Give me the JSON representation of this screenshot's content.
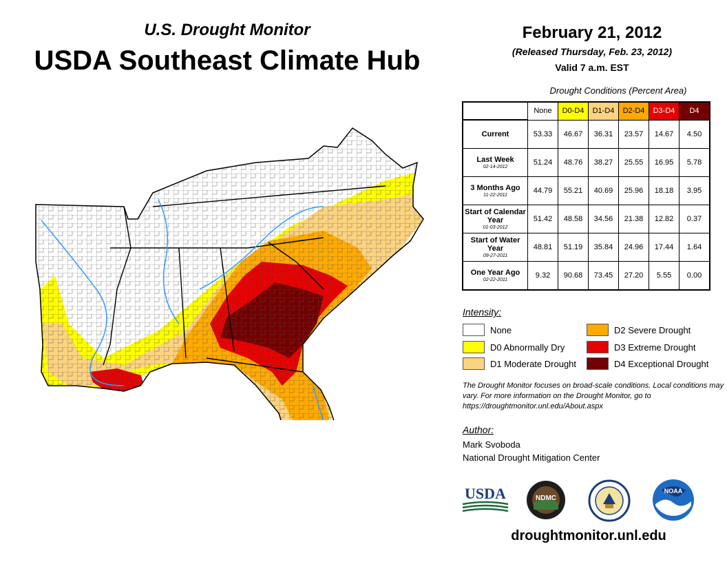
{
  "header": {
    "subtitle": "U.S. Drought Monitor",
    "title": "USDA Southeast Climate Hub",
    "date": "February 21, 2012",
    "released": "(Released Thursday, Feb. 23, 2012)",
    "valid": "Valid 7 a.m. EST"
  },
  "table": {
    "caption": "Drought Conditions (Percent Area)",
    "columns": [
      "None",
      "D0-D4",
      "D1-D4",
      "D2-D4",
      "D3-D4",
      "D4"
    ],
    "column_colors": [
      "#ffffff",
      "#ffff00",
      "#fcd37f",
      "#ffaa00",
      "#e60000",
      "#730000"
    ],
    "rows": [
      {
        "label": "Current",
        "date": "",
        "values": [
          "53.33",
          "46.67",
          "36.31",
          "23.57",
          "14.67",
          "4.50"
        ]
      },
      {
        "label": "Last Week",
        "date": "02-14-2012",
        "values": [
          "51.24",
          "48.76",
          "38.27",
          "25.55",
          "16.95",
          "5.78"
        ]
      },
      {
        "label": "3 Months Ago",
        "date": "11-22-2011",
        "values": [
          "44.79",
          "55.21",
          "40.69",
          "25.96",
          "18.18",
          "3.95"
        ]
      },
      {
        "label": "Start of Calendar Year",
        "date": "01-03-2012",
        "values": [
          "51.42",
          "48.58",
          "34.56",
          "21.38",
          "12.82",
          "0.37"
        ]
      },
      {
        "label": "Start of Water Year",
        "date": "09-27-2011",
        "values": [
          "48.81",
          "51.19",
          "35.84",
          "24.96",
          "17.44",
          "1.64"
        ]
      },
      {
        "label": "One Year Ago",
        "date": "02-22-2011",
        "values": [
          "9.32",
          "90.68",
          "73.45",
          "27.20",
          "5.55",
          "0.00"
        ]
      }
    ]
  },
  "legend": {
    "title": "Intensity:",
    "items": [
      {
        "label": "None",
        "color": "#ffffff"
      },
      {
        "label": "D0 Abnormally Dry",
        "color": "#ffff00"
      },
      {
        "label": "D1 Moderate Drought",
        "color": "#fcd37f"
      },
      {
        "label": "D2 Severe Drought",
        "color": "#ffaa00"
      },
      {
        "label": "D3 Extreme Drought",
        "color": "#e60000"
      },
      {
        "label": "D4 Exceptional Drought",
        "color": "#730000"
      }
    ]
  },
  "note": "The Drought Monitor focuses on broad-scale conditions. Local conditions may vary. For more information on the Drought Monitor, go to https://droughtmonitor.unl.edu/About.aspx",
  "author": {
    "title": "Author:",
    "name": "Mark Svoboda",
    "org": "National Drought Mitigation Center"
  },
  "logos": {
    "usda": "USDA",
    "ndmc": "NDMC",
    "noaa": "NOAA"
  },
  "footer": {
    "url": "droughtmonitor.unl.edu"
  }
}
